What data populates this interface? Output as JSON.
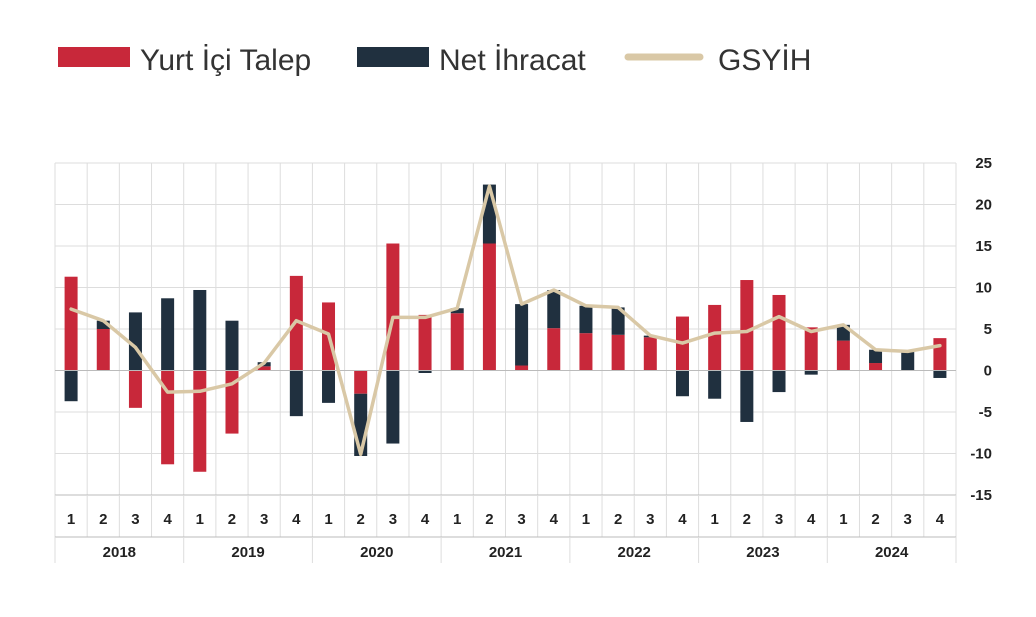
{
  "colors": {
    "domestic": "#c8283a",
    "net_exports": "#20303f",
    "gdp": "#d9c8a6",
    "grid": "#dddddd",
    "axis": "#bbbbbb"
  },
  "chart_data": {
    "type": "bar",
    "stacked": true,
    "legend_position": "top-left",
    "grid": true,
    "y_axis_side": "right",
    "ylim": [
      -15,
      25
    ],
    "yticks": [
      25,
      20,
      15,
      10,
      5,
      0,
      -5,
      -10,
      -15
    ],
    "quarter_labels": [
      "1",
      "2",
      "3",
      "4",
      "1",
      "2",
      "3",
      "4",
      "1",
      "2",
      "3",
      "4",
      "1",
      "2",
      "3",
      "4",
      "1",
      "2",
      "3",
      "4",
      "1",
      "2",
      "3",
      "4",
      "1",
      "2",
      "3",
      "4"
    ],
    "years": [
      "2018",
      "2019",
      "2020",
      "2021",
      "2022",
      "2023",
      "2024"
    ],
    "series": [
      {
        "name": "Yurt İçi Talep",
        "kind": "bar",
        "values": [
          11.3,
          5.0,
          -4.5,
          -11.3,
          -12.2,
          -7.6,
          0.5,
          11.4,
          8.2,
          -2.8,
          15.3,
          6.7,
          6.9,
          15.3,
          0.6,
          5.1,
          4.5,
          4.3,
          4.0,
          6.5,
          7.9,
          10.9,
          9.1,
          5.2,
          3.6,
          0.9,
          0.0,
          3.9
        ]
      },
      {
        "name": "Net İhracat",
        "kind": "bar",
        "values": [
          -3.7,
          1.0,
          7.0,
          8.7,
          9.7,
          6.0,
          0.5,
          -5.5,
          -3.9,
          -7.5,
          -8.8,
          -0.3,
          0.6,
          7.1,
          7.4,
          4.6,
          3.3,
          3.3,
          0.2,
          -3.1,
          -3.4,
          -6.2,
          -2.6,
          -0.5,
          1.9,
          1.6,
          2.3,
          -0.9
        ]
      },
      {
        "name": "GSYİH",
        "kind": "line",
        "values": [
          7.4,
          6.0,
          2.8,
          -2.6,
          -2.5,
          -1.6,
          0.9,
          6.0,
          4.4,
          -10.1,
          6.4,
          6.4,
          7.5,
          22.2,
          8.0,
          9.7,
          7.8,
          7.6,
          4.2,
          3.3,
          4.5,
          4.7,
          6.5,
          4.7,
          5.5,
          2.5,
          2.3,
          3.0
        ]
      }
    ]
  }
}
